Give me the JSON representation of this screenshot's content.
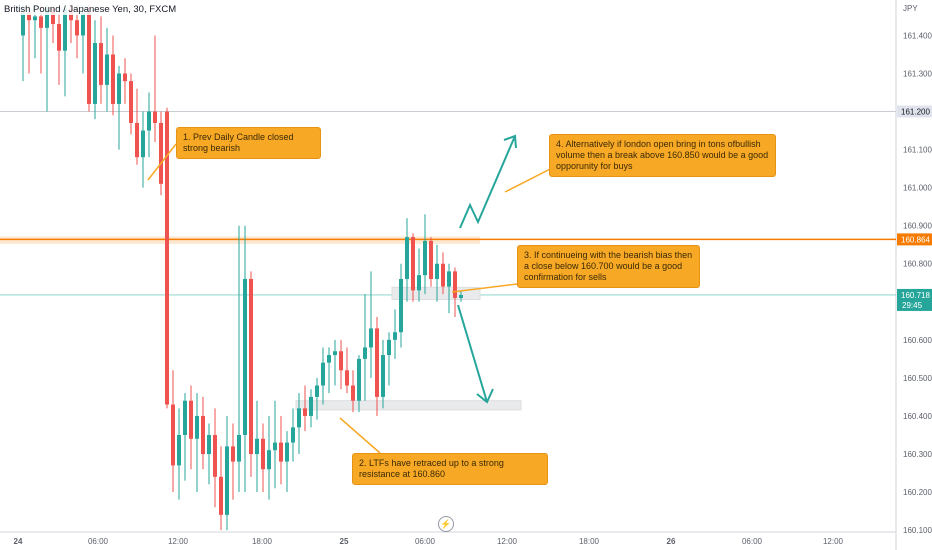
{
  "title": "British Pound / Japanese Yen, 30, FXCM",
  "currency": "JPY",
  "price_tags": {
    "line_1": "161.200",
    "line_2": "160.864",
    "current_price": "160.718",
    "countdown": "29:45"
  },
  "annotations": {
    "note1": "1. Prev Daily Candle closed strong bearish",
    "note2": "2. LTFs have retraced up to a strong resistance at 160.860",
    "note3": "3. If continueing with the bearish bias then a close below 160.700 would be a good confirmation for sells",
    "note4": "4. Alternatively if london open bring in tons ofbullish volume then a break above 160.850 would be a good opporunity for buys"
  },
  "colors": {
    "up": "#26a69a",
    "down": "#ef5350",
    "resistance_line": "#f57c00",
    "teal_arrow": "#26a69a",
    "note_bg": "#f7a825"
  },
  "chart_data": {
    "type": "candlestick",
    "title": "British Pound / Japanese Yen, 30, FXCM",
    "xlabel": "",
    "ylabel": "JPY",
    "ylim": [
      160.095,
      161.48
    ],
    "y_ticks": [
      "161.400",
      "161.300",
      "161.200",
      "161.100",
      "161.000",
      "160.900",
      "160.800",
      "160.700",
      "160.600",
      "160.500",
      "160.400",
      "160.300",
      "160.200",
      "160.100"
    ],
    "x_ticks": [
      "24",
      "06:00",
      "12:00",
      "18:00",
      "25",
      "06:00",
      "12:00",
      "18:00",
      "26",
      "06:00",
      "12:00"
    ],
    "horizontal_lines": [
      {
        "label": "161.200",
        "value": 161.2,
        "style": "thin"
      },
      {
        "label": "160.864",
        "value": 160.864,
        "style": "orange"
      },
      {
        "label": "160.718",
        "value": 160.718,
        "style": "current"
      }
    ],
    "candles": [
      {
        "o": 161.4,
        "h": 161.48,
        "l": 161.28,
        "c": 161.46
      },
      {
        "o": 161.46,
        "h": 161.48,
        "l": 161.3,
        "c": 161.44
      },
      {
        "o": 161.44,
        "h": 161.48,
        "l": 161.34,
        "c": 161.45
      },
      {
        "o": 161.45,
        "h": 161.48,
        "l": 161.3,
        "c": 161.42
      },
      {
        "o": 161.42,
        "h": 161.48,
        "l": 161.2,
        "c": 161.47
      },
      {
        "o": 161.47,
        "h": 161.48,
        "l": 161.38,
        "c": 161.43
      },
      {
        "o": 161.43,
        "h": 161.48,
        "l": 161.27,
        "c": 161.36
      },
      {
        "o": 161.36,
        "h": 161.48,
        "l": 161.24,
        "c": 161.47
      },
      {
        "o": 161.47,
        "h": 161.48,
        "l": 161.38,
        "c": 161.44
      },
      {
        "o": 161.44,
        "h": 161.48,
        "l": 161.34,
        "c": 161.4
      },
      {
        "o": 161.4,
        "h": 161.48,
        "l": 161.3,
        "c": 161.46
      },
      {
        "o": 161.46,
        "h": 161.48,
        "l": 161.2,
        "c": 161.22
      },
      {
        "o": 161.22,
        "h": 161.44,
        "l": 161.18,
        "c": 161.38
      },
      {
        "o": 161.38,
        "h": 161.45,
        "l": 161.22,
        "c": 161.27
      },
      {
        "o": 161.27,
        "h": 161.42,
        "l": 161.2,
        "c": 161.35
      },
      {
        "o": 161.35,
        "h": 161.4,
        "l": 161.19,
        "c": 161.22
      },
      {
        "o": 161.22,
        "h": 161.32,
        "l": 161.1,
        "c": 161.3
      },
      {
        "o": 161.3,
        "h": 161.34,
        "l": 161.22,
        "c": 161.28
      },
      {
        "o": 161.28,
        "h": 161.3,
        "l": 161.14,
        "c": 161.17
      },
      {
        "o": 161.17,
        "h": 161.26,
        "l": 161.06,
        "c": 161.08
      },
      {
        "o": 161.08,
        "h": 161.2,
        "l": 161.0,
        "c": 161.15
      },
      {
        "o": 161.15,
        "h": 161.25,
        "l": 161.08,
        "c": 161.2
      },
      {
        "o": 161.2,
        "h": 161.4,
        "l": 161.12,
        "c": 161.17
      },
      {
        "o": 161.17,
        "h": 161.2,
        "l": 160.98,
        "c": 161.01
      },
      {
        "o": 161.2,
        "h": 161.21,
        "l": 160.42,
        "c": 160.43
      },
      {
        "o": 160.43,
        "h": 160.52,
        "l": 160.2,
        "c": 160.27
      },
      {
        "o": 160.27,
        "h": 160.42,
        "l": 160.18,
        "c": 160.35
      },
      {
        "o": 160.35,
        "h": 160.46,
        "l": 160.23,
        "c": 160.44
      },
      {
        "o": 160.44,
        "h": 160.48,
        "l": 160.26,
        "c": 160.34
      },
      {
        "o": 160.34,
        "h": 160.46,
        "l": 160.2,
        "c": 160.4
      },
      {
        "o": 160.4,
        "h": 160.45,
        "l": 160.26,
        "c": 160.3
      },
      {
        "o": 160.3,
        "h": 160.38,
        "l": 160.22,
        "c": 160.35
      },
      {
        "o": 160.35,
        "h": 160.42,
        "l": 160.16,
        "c": 160.24
      },
      {
        "o": 160.24,
        "h": 160.32,
        "l": 160.1,
        "c": 160.14
      },
      {
        "o": 160.14,
        "h": 160.4,
        "l": 160.1,
        "c": 160.32
      },
      {
        "o": 160.32,
        "h": 160.38,
        "l": 160.18,
        "c": 160.28
      },
      {
        "o": 160.28,
        "h": 160.9,
        "l": 160.2,
        "c": 160.35
      },
      {
        "o": 160.35,
        "h": 160.9,
        "l": 160.2,
        "c": 160.76
      },
      {
        "o": 160.76,
        "h": 160.78,
        "l": 160.24,
        "c": 160.3
      },
      {
        "o": 160.3,
        "h": 160.44,
        "l": 160.2,
        "c": 160.34
      },
      {
        "o": 160.34,
        "h": 160.38,
        "l": 160.2,
        "c": 160.26
      },
      {
        "o": 160.26,
        "h": 160.4,
        "l": 160.18,
        "c": 160.31
      },
      {
        "o": 160.31,
        "h": 160.44,
        "l": 160.21,
        "c": 160.33
      },
      {
        "o": 160.33,
        "h": 160.4,
        "l": 160.22,
        "c": 160.28
      },
      {
        "o": 160.28,
        "h": 160.36,
        "l": 160.2,
        "c": 160.33
      },
      {
        "o": 160.33,
        "h": 160.42,
        "l": 160.28,
        "c": 160.37
      },
      {
        "o": 160.37,
        "h": 160.46,
        "l": 160.3,
        "c": 160.42
      },
      {
        "o": 160.42,
        "h": 160.48,
        "l": 160.36,
        "c": 160.4
      },
      {
        "o": 160.4,
        "h": 160.47,
        "l": 160.37,
        "c": 160.45
      },
      {
        "o": 160.45,
        "h": 160.5,
        "l": 160.39,
        "c": 160.48
      },
      {
        "o": 160.48,
        "h": 160.58,
        "l": 160.43,
        "c": 160.54
      },
      {
        "o": 160.54,
        "h": 160.58,
        "l": 160.46,
        "c": 160.56
      },
      {
        "o": 160.56,
        "h": 160.6,
        "l": 160.48,
        "c": 160.57
      },
      {
        "o": 160.57,
        "h": 160.6,
        "l": 160.47,
        "c": 160.52
      },
      {
        "o": 160.52,
        "h": 160.58,
        "l": 160.46,
        "c": 160.48
      },
      {
        "o": 160.48,
        "h": 160.52,
        "l": 160.41,
        "c": 160.44
      },
      {
        "o": 160.44,
        "h": 160.56,
        "l": 160.41,
        "c": 160.55
      },
      {
        "o": 160.55,
        "h": 160.72,
        "l": 160.44,
        "c": 160.58
      },
      {
        "o": 160.58,
        "h": 160.78,
        "l": 160.5,
        "c": 160.63
      },
      {
        "o": 160.63,
        "h": 160.66,
        "l": 160.4,
        "c": 160.45
      },
      {
        "o": 160.45,
        "h": 160.6,
        "l": 160.42,
        "c": 160.56
      },
      {
        "o": 160.56,
        "h": 160.62,
        "l": 160.48,
        "c": 160.6
      },
      {
        "o": 160.6,
        "h": 160.68,
        "l": 160.55,
        "c": 160.62
      },
      {
        "o": 160.62,
        "h": 160.8,
        "l": 160.58,
        "c": 160.76
      },
      {
        "o": 160.76,
        "h": 160.92,
        "l": 160.7,
        "c": 160.87
      },
      {
        "o": 160.87,
        "h": 160.88,
        "l": 160.7,
        "c": 160.73
      },
      {
        "o": 160.73,
        "h": 160.84,
        "l": 160.7,
        "c": 160.77
      },
      {
        "o": 160.77,
        "h": 160.93,
        "l": 160.72,
        "c": 160.86
      },
      {
        "o": 160.86,
        "h": 160.87,
        "l": 160.74,
        "c": 160.76
      },
      {
        "o": 160.76,
        "h": 160.85,
        "l": 160.7,
        "c": 160.8
      },
      {
        "o": 160.8,
        "h": 160.83,
        "l": 160.72,
        "c": 160.74
      },
      {
        "o": 160.74,
        "h": 160.8,
        "l": 160.67,
        "c": 160.78
      },
      {
        "o": 160.78,
        "h": 160.79,
        "l": 160.66,
        "c": 160.71
      },
      {
        "o": 160.71,
        "h": 160.73,
        "l": 160.7,
        "c": 160.718
      }
    ]
  }
}
